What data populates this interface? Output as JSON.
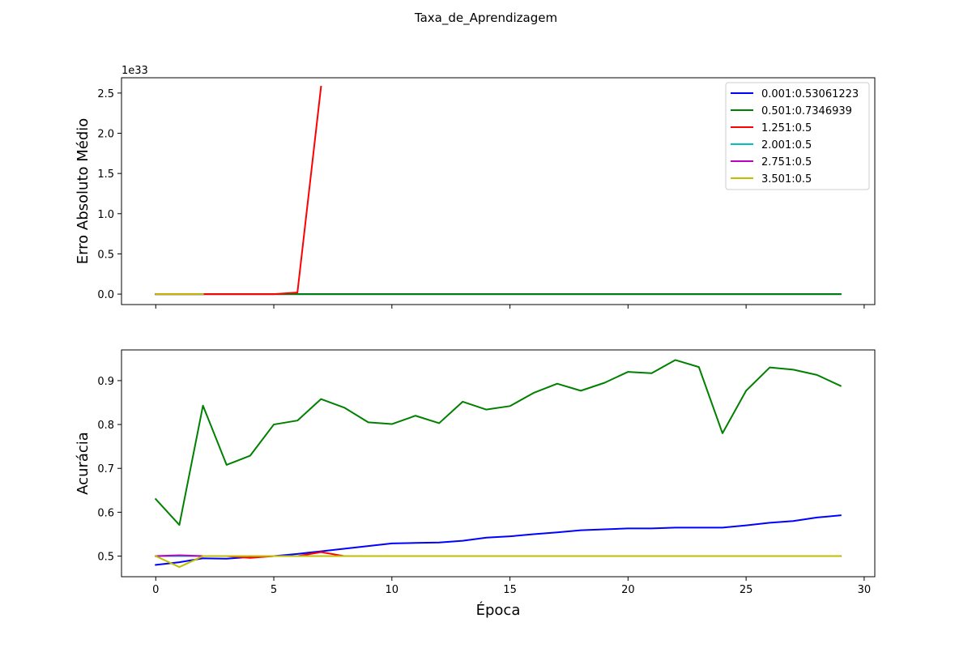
{
  "chart_data": {
    "type": "line",
    "title": "Taxa_de_Aprendizagem",
    "xlabel": "Época",
    "xlim": [
      -1.45,
      30.45
    ],
    "x_ticks": [
      0,
      5,
      10,
      15,
      20,
      25,
      30
    ],
    "x": [
      0,
      1,
      2,
      3,
      4,
      5,
      6,
      7,
      8,
      9,
      10,
      11,
      12,
      13,
      14,
      15,
      16,
      17,
      18,
      19,
      20,
      21,
      22,
      23,
      24,
      25,
      26,
      27,
      28,
      29
    ],
    "subplots": [
      {
        "ylabel": "Erro Absoluto Médio",
        "scale_label": "1e33",
        "ylim": [
          -0.13,
          2.69
        ],
        "y_ticks": [
          0.0,
          0.5,
          1.0,
          1.5,
          2.0,
          2.5
        ],
        "y_tick_labels": [
          "0.0",
          "0.5",
          "1.0",
          "1.5",
          "2.0",
          "2.5"
        ],
        "legend_location": "upper right",
        "series": [
          {
            "name": "0.001:0.53061223",
            "color": "#0000ff",
            "values": [
              0,
              0,
              0,
              0,
              0,
              0,
              0,
              0,
              0,
              0,
              0,
              0,
              0,
              0,
              0,
              0,
              0,
              0,
              0,
              0,
              0,
              0,
              0,
              0,
              0,
              0,
              0,
              0,
              0,
              0
            ]
          },
          {
            "name": "0.501:0.7346939",
            "color": "#008000",
            "values": [
              0,
              0,
              0,
              0,
              0,
              0,
              0,
              0,
              0,
              0,
              0,
              0,
              0,
              0,
              0,
              0,
              0,
              0,
              0,
              0,
              0,
              0,
              0,
              0,
              0,
              0,
              0,
              0,
              0,
              0
            ]
          },
          {
            "name": "1.251:0.5",
            "color": "#ff0000",
            "values": [
              0,
              0,
              0,
              0,
              0,
              0,
              0.02,
              2.58
            ]
          },
          {
            "name": "2.001:0.5",
            "color": "#00bfbf",
            "values": [
              0,
              0,
              0
            ]
          },
          {
            "name": "2.751:0.5",
            "color": "#bf00bf",
            "values": [
              0,
              0,
              0
            ]
          },
          {
            "name": "3.501:0.5",
            "color": "#bfbf00",
            "values": [
              0,
              0,
              0
            ]
          }
        ]
      },
      {
        "ylabel": "Acurácia",
        "ylim": [
          0.453,
          0.97
        ],
        "y_ticks": [
          0.5,
          0.6,
          0.7,
          0.8,
          0.9
        ],
        "y_tick_labels": [
          "0.5",
          "0.6",
          "0.7",
          "0.8",
          "0.9"
        ],
        "series": [
          {
            "name": "0.001:0.53061223",
            "color": "#0000ff",
            "values": [
              0.48,
              0.486,
              0.495,
              0.494,
              0.498,
              0.5,
              0.505,
              0.511,
              0.517,
              0.523,
              0.529,
              0.53,
              0.531,
              0.535,
              0.542,
              0.545,
              0.55,
              0.554,
              0.559,
              0.561,
              0.563,
              0.563,
              0.565,
              0.565,
              0.565,
              0.57,
              0.576,
              0.58,
              0.588,
              0.593
            ]
          },
          {
            "name": "0.501:0.7346939",
            "color": "#008000",
            "values": [
              0.63,
              0.571,
              0.843,
              0.708,
              0.729,
              0.8,
              0.809,
              0.858,
              0.838,
              0.805,
              0.801,
              0.82,
              0.803,
              0.852,
              0.834,
              0.842,
              0.872,
              0.893,
              0.877,
              0.895,
              0.92,
              0.917,
              0.947,
              0.931,
              0.78,
              0.877,
              0.93,
              0.925,
              0.913,
              0.888
            ]
          },
          {
            "name": "1.251:0.5",
            "color": "#ff0000",
            "values": [
              0.5,
              0.5,
              0.5,
              0.5,
              0.496,
              0.5,
              0.5,
              0.509,
              0.5,
              0.5,
              0.5,
              0.5,
              0.5,
              0.5,
              0.5,
              0.5,
              0.5,
              0.5,
              0.5,
              0.5,
              0.5,
              0.5,
              0.5,
              0.5,
              0.5,
              0.5,
              0.5,
              0.5,
              0.5,
              0.5
            ]
          },
          {
            "name": "2.001:0.5",
            "color": "#00bfbf",
            "values": [
              0.5,
              0.5,
              0.5,
              0.5,
              0.5,
              0.5,
              0.5,
              0.5,
              0.5,
              0.5,
              0.5,
              0.5,
              0.5,
              0.5,
              0.5,
              0.5,
              0.5,
              0.5,
              0.5,
              0.5,
              0.5,
              0.5,
              0.5,
              0.5,
              0.5,
              0.5,
              0.5,
              0.5,
              0.5,
              0.5
            ]
          },
          {
            "name": "2.751:0.5",
            "color": "#bf00bf",
            "values": [
              0.5,
              0.502,
              0.5,
              0.5,
              0.5,
              0.5,
              0.5,
              0.5,
              0.5,
              0.5,
              0.5,
              0.5,
              0.5,
              0.5,
              0.5,
              0.5,
              0.5,
              0.5,
              0.5,
              0.5,
              0.5,
              0.5,
              0.5,
              0.5,
              0.5,
              0.5,
              0.5,
              0.5,
              0.5,
              0.5
            ]
          },
          {
            "name": "3.501:0.5",
            "color": "#bfbf00",
            "values": [
              0.5,
              0.475,
              0.5,
              0.5,
              0.5,
              0.5,
              0.5,
              0.5,
              0.5,
              0.5,
              0.5,
              0.5,
              0.5,
              0.5,
              0.5,
              0.5,
              0.5,
              0.5,
              0.5,
              0.5,
              0.5,
              0.5,
              0.5,
              0.5,
              0.5,
              0.5,
              0.5,
              0.5,
              0.5,
              0.5
            ]
          }
        ]
      }
    ]
  }
}
